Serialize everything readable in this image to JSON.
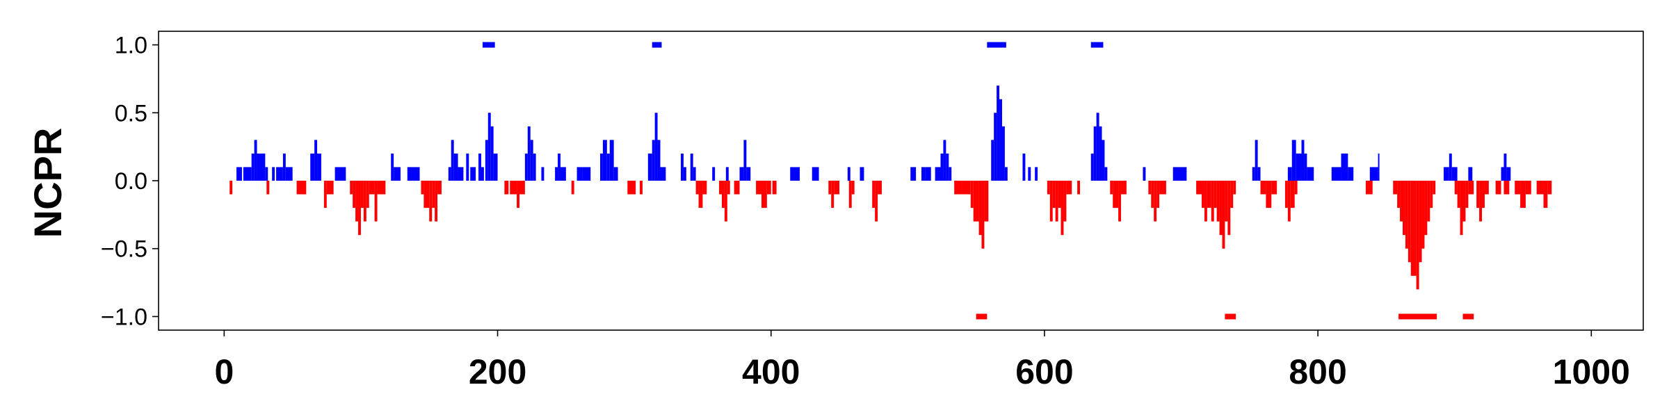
{
  "chart_data": {
    "type": "bar",
    "title": "",
    "xlabel": "",
    "ylabel": "NCPR",
    "xlim": [
      -48,
      1038
    ],
    "ylim": [
      -1.1,
      1.1
    ],
    "x_ticks": [
      0,
      200,
      400,
      600,
      800,
      1000
    ],
    "x_tick_labels": [
      "0",
      "200",
      "400",
      "600",
      "800",
      "1000"
    ],
    "y_ticks": [
      1.0,
      0.5,
      0.0,
      -0.5,
      -1.0
    ],
    "y_tick_labels": [
      "1.0",
      "0.5",
      "0.0",
      "−0.5",
      "−1.0"
    ],
    "grid": false,
    "legend": "none",
    "colors": {
      "positive": "#0000ff",
      "negative": "#ff0000"
    },
    "positive_blocks": [
      [
        9,
        13,
        0.1
      ],
      [
        14,
        20,
        0.1
      ],
      [
        20,
        22,
        0.2
      ],
      [
        22,
        24,
        0.3
      ],
      [
        24,
        30,
        0.2
      ],
      [
        30,
        32,
        0.1
      ],
      [
        35,
        37,
        0.1
      ],
      [
        38,
        43,
        0.1
      ],
      [
        43,
        45,
        0.2
      ],
      [
        45,
        50,
        0.1
      ],
      [
        63,
        66,
        0.2
      ],
      [
        66,
        68,
        0.3
      ],
      [
        68,
        71,
        0.2
      ],
      [
        81,
        89,
        0.1
      ],
      [
        122,
        124,
        0.2
      ],
      [
        124,
        129,
        0.1
      ],
      [
        134,
        143,
        0.1
      ],
      [
        164,
        166,
        0.1
      ],
      [
        166,
        168,
        0.3
      ],
      [
        168,
        171,
        0.2
      ],
      [
        171,
        175,
        0.1
      ],
      [
        177,
        179,
        0.2
      ],
      [
        180,
        184,
        0.1
      ],
      [
        186,
        188,
        0.2
      ],
      [
        188,
        190,
        0.1
      ],
      [
        191,
        193,
        0.3
      ],
      [
        193,
        195,
        0.5
      ],
      [
        195,
        197,
        0.4
      ],
      [
        197,
        200,
        0.2
      ],
      [
        220,
        222,
        0.2
      ],
      [
        222,
        224,
        0.4
      ],
      [
        224,
        226,
        0.3
      ],
      [
        226,
        228,
        0.2
      ],
      [
        232,
        234,
        0.1
      ],
      [
        242,
        244,
        0.1
      ],
      [
        244,
        246,
        0.2
      ],
      [
        246,
        250,
        0.1
      ],
      [
        258,
        262,
        0.1
      ],
      [
        262,
        268,
        0.1
      ],
      [
        275,
        277,
        0.2
      ],
      [
        277,
        280,
        0.3
      ],
      [
        280,
        282,
        0.2
      ],
      [
        282,
        285,
        0.3
      ],
      [
        285,
        288,
        0.1
      ],
      [
        310,
        313,
        0.2
      ],
      [
        313,
        315,
        0.3
      ],
      [
        315,
        317,
        0.5
      ],
      [
        317,
        319,
        0.3
      ],
      [
        319,
        323,
        0.1
      ],
      [
        334,
        336,
        0.2
      ],
      [
        336,
        338,
        0.1
      ],
      [
        341,
        343,
        0.2
      ],
      [
        343,
        345,
        0.1
      ],
      [
        357,
        359,
        0.1
      ],
      [
        367,
        369,
        0.1
      ],
      [
        377,
        380,
        0.1
      ],
      [
        380,
        382,
        0.3
      ],
      [
        382,
        385,
        0.1
      ],
      [
        414,
        421,
        0.1
      ],
      [
        430,
        435,
        0.1
      ],
      [
        456,
        458,
        0.1
      ],
      [
        465,
        468,
        0.1
      ],
      [
        502,
        506,
        0.1
      ],
      [
        510,
        513,
        0.1
      ],
      [
        513,
        517,
        0.1
      ],
      [
        520,
        524,
        0.1
      ],
      [
        524,
        526,
        0.2
      ],
      [
        526,
        528,
        0.3
      ],
      [
        528,
        530,
        0.2
      ],
      [
        530,
        532,
        0.1
      ],
      [
        561,
        563,
        0.3
      ],
      [
        563,
        565,
        0.5
      ],
      [
        565,
        567,
        0.7
      ],
      [
        567,
        569,
        0.6
      ],
      [
        569,
        571,
        0.4
      ],
      [
        571,
        573,
        0.1
      ],
      [
        584,
        586,
        0.2
      ],
      [
        588,
        590,
        0.1
      ],
      [
        593,
        595,
        0.1
      ],
      [
        634,
        636,
        0.2
      ],
      [
        636,
        638,
        0.4
      ],
      [
        638,
        640,
        0.5
      ],
      [
        640,
        642,
        0.4
      ],
      [
        642,
        644,
        0.3
      ],
      [
        644,
        646,
        0.1
      ],
      [
        672,
        674,
        0.1
      ],
      [
        694,
        704,
        0.1
      ],
      [
        752,
        754,
        0.1
      ],
      [
        754,
        756,
        0.3
      ],
      [
        756,
        758,
        0.1
      ],
      [
        778,
        781,
        0.1
      ],
      [
        781,
        784,
        0.3
      ],
      [
        784,
        788,
        0.2
      ],
      [
        788,
        790,
        0.3
      ],
      [
        790,
        792,
        0.2
      ],
      [
        792,
        797,
        0.1
      ],
      [
        810,
        817,
        0.1
      ],
      [
        817,
        822,
        0.2
      ],
      [
        822,
        826,
        0.1
      ],
      [
        838,
        844,
        0.1
      ],
      [
        844,
        845,
        0.2
      ],
      [
        892,
        896,
        0.1
      ],
      [
        896,
        898,
        0.2
      ],
      [
        898,
        902,
        0.1
      ],
      [
        910,
        913,
        0.1
      ],
      [
        934,
        936,
        0.1
      ],
      [
        936,
        938,
        0.2
      ],
      [
        938,
        941,
        0.1
      ]
    ],
    "negative_blocks": [
      [
        4,
        6,
        -0.1
      ],
      [
        31,
        33,
        -0.1
      ],
      [
        53,
        60,
        -0.1
      ],
      [
        73,
        75,
        -0.2
      ],
      [
        75,
        80,
        -0.1
      ],
      [
        92,
        94,
        -0.1
      ],
      [
        94,
        96,
        -0.2
      ],
      [
        96,
        98,
        -0.3
      ],
      [
        98,
        100,
        -0.4
      ],
      [
        100,
        102,
        -0.2
      ],
      [
        102,
        104,
        -0.3
      ],
      [
        104,
        106,
        -0.2
      ],
      [
        106,
        110,
        -0.1
      ],
      [
        110,
        112,
        -0.3
      ],
      [
        112,
        118,
        -0.1
      ],
      [
        144,
        146,
        -0.1
      ],
      [
        146,
        150,
        -0.2
      ],
      [
        150,
        152,
        -0.3
      ],
      [
        152,
        154,
        -0.2
      ],
      [
        154,
        156,
        -0.3
      ],
      [
        156,
        159,
        -0.1
      ],
      [
        205,
        208,
        -0.1
      ],
      [
        209,
        214,
        -0.1
      ],
      [
        214,
        216,
        -0.2
      ],
      [
        216,
        220,
        -0.1
      ],
      [
        254,
        256,
        -0.1
      ],
      [
        295,
        301,
        -0.1
      ],
      [
        304,
        306,
        -0.1
      ],
      [
        345,
        347,
        -0.1
      ],
      [
        347,
        350,
        -0.2
      ],
      [
        350,
        353,
        -0.1
      ],
      [
        362,
        364,
        -0.1
      ],
      [
        364,
        366,
        -0.2
      ],
      [
        366,
        368,
        -0.3
      ],
      [
        368,
        370,
        -0.1
      ],
      [
        373,
        377,
        -0.1
      ],
      [
        389,
        393,
        -0.1
      ],
      [
        393,
        397,
        -0.2
      ],
      [
        397,
        400,
        -0.1
      ],
      [
        401,
        404,
        -0.1
      ],
      [
        442,
        444,
        -0.1
      ],
      [
        444,
        446,
        -0.2
      ],
      [
        446,
        450,
        -0.1
      ],
      [
        457,
        459,
        -0.2
      ],
      [
        459,
        461,
        -0.1
      ],
      [
        474,
        476,
        -0.2
      ],
      [
        476,
        478,
        -0.3
      ],
      [
        478,
        481,
        -0.1
      ],
      [
        534,
        540,
        -0.1
      ],
      [
        540,
        546,
        -0.1
      ],
      [
        546,
        548,
        -0.2
      ],
      [
        548,
        552,
        -0.3
      ],
      [
        552,
        554,
        -0.4
      ],
      [
        554,
        556,
        -0.5
      ],
      [
        556,
        559,
        -0.3
      ],
      [
        602,
        604,
        -0.1
      ],
      [
        604,
        606,
        -0.3
      ],
      [
        606,
        608,
        -0.2
      ],
      [
        608,
        610,
        -0.3
      ],
      [
        610,
        612,
        -0.2
      ],
      [
        612,
        614,
        -0.4
      ],
      [
        614,
        616,
        -0.3
      ],
      [
        616,
        620,
        -0.1
      ],
      [
        624,
        626,
        -0.1
      ],
      [
        648,
        650,
        -0.1
      ],
      [
        650,
        654,
        -0.2
      ],
      [
        654,
        656,
        -0.3
      ],
      [
        656,
        660,
        -0.1
      ],
      [
        676,
        678,
        -0.1
      ],
      [
        678,
        680,
        -0.2
      ],
      [
        680,
        682,
        -0.3
      ],
      [
        682,
        684,
        -0.2
      ],
      [
        684,
        689,
        -0.1
      ],
      [
        711,
        715,
        -0.1
      ],
      [
        715,
        717,
        -0.2
      ],
      [
        717,
        719,
        -0.3
      ],
      [
        719,
        722,
        -0.2
      ],
      [
        722,
        724,
        -0.3
      ],
      [
        724,
        726,
        -0.2
      ],
      [
        726,
        728,
        -0.3
      ],
      [
        728,
        730,
        -0.4
      ],
      [
        730,
        732,
        -0.5
      ],
      [
        732,
        734,
        -0.3
      ],
      [
        734,
        736,
        -0.4
      ],
      [
        736,
        738,
        -0.2
      ],
      [
        738,
        740,
        -0.1
      ],
      [
        758,
        762,
        -0.1
      ],
      [
        762,
        766,
        -0.2
      ],
      [
        766,
        770,
        -0.1
      ],
      [
        776,
        778,
        -0.2
      ],
      [
        778,
        780,
        -0.3
      ],
      [
        780,
        783,
        -0.2
      ],
      [
        783,
        785,
        -0.1
      ],
      [
        835,
        840,
        -0.1
      ],
      [
        855,
        858,
        -0.1
      ],
      [
        858,
        860,
        -0.2
      ],
      [
        860,
        862,
        -0.3
      ],
      [
        862,
        864,
        -0.4
      ],
      [
        864,
        866,
        -0.5
      ],
      [
        866,
        868,
        -0.6
      ],
      [
        868,
        872,
        -0.7
      ],
      [
        872,
        874,
        -0.8
      ],
      [
        874,
        876,
        -0.6
      ],
      [
        876,
        878,
        -0.5
      ],
      [
        878,
        880,
        -0.4
      ],
      [
        880,
        882,
        -0.3
      ],
      [
        882,
        884,
        -0.2
      ],
      [
        884,
        886,
        -0.1
      ],
      [
        900,
        902,
        -0.1
      ],
      [
        902,
        904,
        -0.2
      ],
      [
        904,
        906,
        -0.4
      ],
      [
        906,
        908,
        -0.3
      ],
      [
        908,
        910,
        -0.2
      ],
      [
        910,
        914,
        -0.1
      ],
      [
        916,
        918,
        -0.2
      ],
      [
        918,
        920,
        -0.3
      ],
      [
        920,
        922,
        -0.2
      ],
      [
        922,
        925,
        -0.1
      ],
      [
        930,
        934,
        -0.1
      ],
      [
        936,
        940,
        -0.1
      ],
      [
        944,
        948,
        -0.1
      ],
      [
        948,
        952,
        -0.2
      ],
      [
        952,
        956,
        -0.1
      ],
      [
        960,
        965,
        -0.1
      ],
      [
        965,
        968,
        -0.2
      ],
      [
        968,
        971,
        -0.1
      ]
    ],
    "positive_markers": [
      [
        189,
        198
      ],
      [
        313,
        320
      ],
      [
        558,
        572
      ],
      [
        634,
        643
      ]
    ],
    "negative_markers": [
      [
        550,
        558
      ],
      [
        732,
        740
      ],
      [
        859,
        887
      ],
      [
        906,
        914
      ]
    ],
    "marker_levels": {
      "positive": 1.0,
      "negative": -1.0
    }
  }
}
